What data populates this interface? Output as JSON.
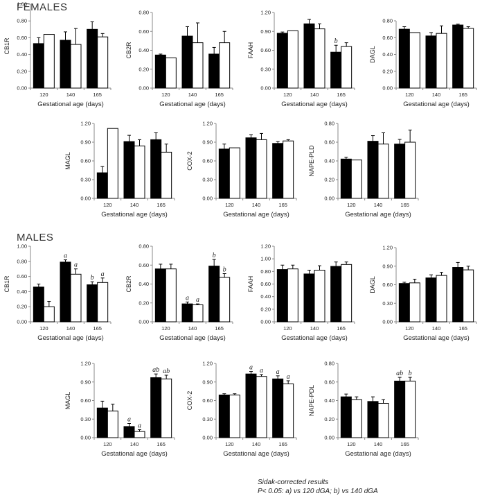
{
  "sections": [
    {
      "title": "FEMALES"
    },
    {
      "title": "MALES"
    }
  ],
  "footnote": {
    "line1": "Sidak-corrected results",
    "line2": "P< 0.05: a) vs 120 dGA; b) vs 140 dGA"
  },
  "colors": {
    "series_a": "#000000",
    "series_b": "#ffffff",
    "axis": "#888888"
  },
  "chart_data": [
    {
      "type": "bar",
      "ylabel": "CB1R",
      "xlabel": "Gestational age (days)",
      "categories": [
        "120",
        "140",
        "165"
      ],
      "ylim": [
        0,
        1.0
      ],
      "yticks": [
        "0.00",
        "0.20",
        "0.40",
        "0.60",
        "0.80",
        "1.00"
      ],
      "series": [
        {
          "values": [
            0.53,
            0.57,
            0.7
          ],
          "errors": [
            0.07,
            0.1,
            0.09
          ],
          "annotations": [
            "",
            "",
            ""
          ]
        },
        {
          "values": [
            0.64,
            0.52,
            0.61
          ],
          "errors": [
            0.0,
            0.19,
            0.04
          ],
          "annotations": [
            "",
            "",
            ""
          ]
        }
      ]
    },
    {
      "type": "bar",
      "ylabel": "CB2R",
      "xlabel": "Gestational age (days)",
      "categories": [
        "120",
        "140",
        "165"
      ],
      "ylim": [
        0,
        0.8
      ],
      "yticks": [
        "0.00",
        "0.20",
        "0.40",
        "0.60",
        "0.80"
      ],
      "series": [
        {
          "values": [
            0.35,
            0.55,
            0.36
          ],
          "errors": [
            0.01,
            0.1,
            0.07
          ],
          "annotations": [
            "",
            "",
            ""
          ]
        },
        {
          "values": [
            0.32,
            0.48,
            0.48
          ],
          "errors": [
            0.0,
            0.21,
            0.12
          ],
          "annotations": [
            "",
            "",
            ""
          ]
        }
      ]
    },
    {
      "type": "bar",
      "ylabel": "FAAH",
      "xlabel": "Gestational age (days)",
      "categories": [
        "120",
        "140",
        "165"
      ],
      "ylim": [
        0,
        1.2
      ],
      "yticks": [
        "0.00",
        "0.30",
        "0.60",
        "0.90",
        "1.20"
      ],
      "series": [
        {
          "values": [
            0.87,
            1.02,
            0.57
          ],
          "errors": [
            0.02,
            0.07,
            0.11
          ],
          "annotations": [
            "",
            "",
            "b"
          ]
        },
        {
          "values": [
            0.91,
            0.94,
            0.66
          ],
          "errors": [
            0.0,
            0.08,
            0.06
          ],
          "annotations": [
            "",
            "",
            ""
          ]
        }
      ]
    },
    {
      "type": "bar",
      "ylabel": "DAGL",
      "xlabel": "Gestational age (days)",
      "categories": [
        "120",
        "140",
        "165"
      ],
      "ylim": [
        0,
        0.8
      ],
      "yticks": [
        "0.00",
        "0.20",
        "0.40",
        "0.60",
        "0.80"
      ],
      "series": [
        {
          "values": [
            0.7,
            0.62,
            0.75
          ],
          "errors": [
            0.03,
            0.04,
            0.01
          ],
          "annotations": [
            "",
            "",
            ""
          ]
        },
        {
          "values": [
            0.66,
            0.65,
            0.71
          ],
          "errors": [
            0.0,
            0.09,
            0.02
          ],
          "annotations": [
            "",
            "",
            ""
          ]
        }
      ]
    },
    {
      "type": "bar",
      "ylabel": "MAGL",
      "xlabel": "Gestational age (days)",
      "categories": [
        "120",
        "140",
        "165"
      ],
      "ylim": [
        0,
        1.2
      ],
      "yticks": [
        "0.00",
        "0.30",
        "0.60",
        "0.90",
        "1.20"
      ],
      "series": [
        {
          "values": [
            0.41,
            0.91,
            0.94
          ],
          "errors": [
            0.1,
            0.1,
            0.11
          ],
          "annotations": [
            "",
            "",
            ""
          ]
        },
        {
          "values": [
            1.12,
            0.84,
            0.74
          ],
          "errors": [
            0.0,
            0.1,
            0.13
          ],
          "annotations": [
            "",
            "",
            ""
          ]
        }
      ]
    },
    {
      "type": "bar",
      "ylabel": "COX-2",
      "xlabel": "Gestational age (days)",
      "categories": [
        "120",
        "140",
        "165"
      ],
      "ylim": [
        0,
        1.2
      ],
      "yticks": [
        "0.00",
        "0.30",
        "0.60",
        "0.90",
        "1.20"
      ],
      "series": [
        {
          "values": [
            0.79,
            0.97,
            0.88
          ],
          "errors": [
            0.08,
            0.05,
            0.03
          ],
          "annotations": [
            "",
            "",
            ""
          ]
        },
        {
          "values": [
            0.81,
            0.94,
            0.92
          ],
          "errors": [
            0.0,
            0.1,
            0.02
          ],
          "annotations": [
            "",
            "",
            ""
          ]
        }
      ]
    },
    {
      "type": "bar",
      "ylabel": "NAPE-PLD",
      "xlabel": "Gestational age (days)",
      "categories": [
        "120",
        "140",
        "165"
      ],
      "ylim": [
        0,
        0.8
      ],
      "yticks": [
        "0.00",
        "0.20",
        "0.40",
        "0.60",
        "0.80"
      ],
      "series": [
        {
          "values": [
            0.42,
            0.61,
            0.58
          ],
          "errors": [
            0.02,
            0.06,
            0.05
          ],
          "annotations": [
            "",
            "",
            ""
          ]
        },
        {
          "values": [
            0.41,
            0.58,
            0.6
          ],
          "errors": [
            0.0,
            0.12,
            0.13
          ],
          "annotations": [
            "",
            "",
            ""
          ]
        }
      ]
    },
    {
      "type": "bar",
      "ylabel": "CB1R",
      "xlabel": "Gestational age (days)",
      "categories": [
        "120",
        "140",
        "165"
      ],
      "ylim": [
        0,
        1.0
      ],
      "yticks": [
        "0.00",
        "0.20",
        "0.40",
        "0.60",
        "0.80",
        "1.00"
      ],
      "series": [
        {
          "values": [
            0.46,
            0.79,
            0.49
          ],
          "errors": [
            0.04,
            0.03,
            0.04
          ],
          "annotations": [
            "",
            "a",
            "b"
          ]
        },
        {
          "values": [
            0.2,
            0.63,
            0.52
          ],
          "errors": [
            0.07,
            0.07,
            0.06
          ],
          "annotations": [
            "",
            "a",
            "a"
          ]
        }
      ]
    },
    {
      "type": "bar",
      "ylabel": "CB2R",
      "xlabel": "Gestational age (days)",
      "categories": [
        "120",
        "140",
        "165"
      ],
      "ylim": [
        0,
        0.8
      ],
      "yticks": [
        "0.00",
        "0.20",
        "0.40",
        "0.60",
        "0.80"
      ],
      "series": [
        {
          "values": [
            0.56,
            0.19,
            0.59
          ],
          "errors": [
            0.05,
            0.02,
            0.07
          ],
          "annotations": [
            "",
            "a",
            "b"
          ]
        },
        {
          "values": [
            0.56,
            0.18,
            0.47
          ],
          "errors": [
            0.05,
            0.01,
            0.04
          ],
          "annotations": [
            "",
            "a",
            "b"
          ]
        }
      ]
    },
    {
      "type": "bar",
      "ylabel": "FAAH",
      "xlabel": "Gestational age (days)",
      "categories": [
        "120",
        "140",
        "165"
      ],
      "ylim": [
        0,
        1.2
      ],
      "yticks": [
        "0.00",
        "0.20",
        "0.40",
        "0.60",
        "0.80",
        "1.00",
        "1.20"
      ],
      "series": [
        {
          "values": [
            0.83,
            0.76,
            0.88
          ],
          "errors": [
            0.07,
            0.06,
            0.07
          ],
          "annotations": [
            "",
            "",
            ""
          ]
        },
        {
          "values": [
            0.84,
            0.82,
            0.91
          ],
          "errors": [
            0.06,
            0.07,
            0.04
          ],
          "annotations": [
            "",
            "",
            ""
          ]
        }
      ]
    },
    {
      "type": "bar",
      "ylabel": "DAGL",
      "xlabel": "Gestational age (days)",
      "categories": [
        "120",
        "140",
        "165"
      ],
      "ylim": [
        0,
        1.2
      ],
      "yticks": [
        "0.00",
        "0.30",
        "0.60",
        "0.90",
        "1.20"
      ],
      "series": [
        {
          "values": [
            0.62,
            0.71,
            0.88
          ],
          "errors": [
            0.02,
            0.05,
            0.08
          ],
          "annotations": [
            "",
            "",
            ""
          ]
        },
        {
          "values": [
            0.63,
            0.75,
            0.84
          ],
          "errors": [
            0.06,
            0.05,
            0.06
          ],
          "annotations": [
            "",
            "",
            ""
          ]
        }
      ]
    },
    {
      "type": "bar",
      "ylabel": "MAGL",
      "xlabel": "Gestational age (days)",
      "categories": [
        "120",
        "140",
        "165"
      ],
      "ylim": [
        0,
        1.2
      ],
      "yticks": [
        "0.00",
        "0.30",
        "0.60",
        "0.90",
        "1.20"
      ],
      "series": [
        {
          "values": [
            0.48,
            0.18,
            0.97
          ],
          "errors": [
            0.11,
            0.05,
            0.06
          ],
          "annotations": [
            "",
            "a",
            "ab"
          ]
        },
        {
          "values": [
            0.43,
            0.1,
            0.95
          ],
          "errors": [
            0.11,
            0.03,
            0.06
          ],
          "annotations": [
            "",
            "a",
            "ab"
          ]
        }
      ]
    },
    {
      "type": "bar",
      "ylabel": "COX-2",
      "xlabel": "Gestational age (days)",
      "categories": [
        "120",
        "140",
        "165"
      ],
      "ylim": [
        0,
        1.2
      ],
      "yticks": [
        "0.00",
        "0.30",
        "0.60",
        "0.90",
        "1.20"
      ],
      "series": [
        {
          "values": [
            0.69,
            1.03,
            0.95
          ],
          "errors": [
            0.02,
            0.04,
            0.05
          ],
          "annotations": [
            "",
            "a",
            "a"
          ]
        },
        {
          "values": [
            0.69,
            0.99,
            0.87
          ],
          "errors": [
            0.02,
            0.03,
            0.05
          ],
          "annotations": [
            "",
            "a",
            "a"
          ]
        }
      ]
    },
    {
      "type": "bar",
      "ylabel": "NAPE-PDL",
      "xlabel": "Gestational age (days)",
      "categories": [
        "120",
        "140",
        "165"
      ],
      "ylim": [
        0,
        0.8
      ],
      "yticks": [
        "0.00",
        "0.20",
        "0.40",
        "0.60",
        "0.80"
      ],
      "series": [
        {
          "values": [
            0.44,
            0.39,
            0.61
          ],
          "errors": [
            0.03,
            0.05,
            0.04
          ],
          "annotations": [
            "",
            "",
            "ab"
          ]
        },
        {
          "values": [
            0.41,
            0.37,
            0.61
          ],
          "errors": [
            0.03,
            0.04,
            0.04
          ],
          "annotations": [
            "",
            "",
            "b"
          ]
        }
      ]
    }
  ]
}
